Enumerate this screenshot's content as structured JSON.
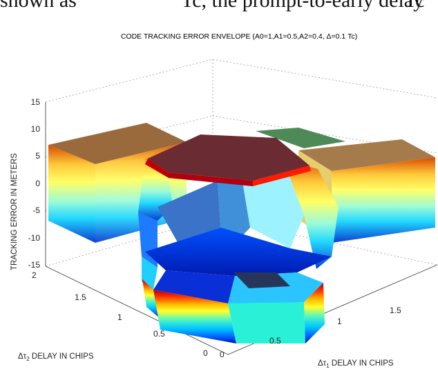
{
  "header_text": {
    "left": "shown as ",
    "right": "Tc",
    "middle": "Tc, the prompt-to-early delay"
  },
  "chart_data": {
    "type": "surface",
    "title": "CODE TRACKING ERROR ENVELOPE (A0=1,A1=0.5,A2=0.4, Δ=0.1 Tc)",
    "zlabel": "TRACKING ERROR IN METERS",
    "xlabel": "Δτ1 DELAY IN CHIPS",
    "ylabel": "Δτ2 DELAY IN CHIPS",
    "xlabel_main": "Δτ",
    "xlabel_sub": "1",
    "xlabel_rest": " DELAY IN CHIPS",
    "ylabel_main": "Δτ",
    "ylabel_sub": "2",
    "ylabel_rest": " DELAY IN CHIPS",
    "z_ticks": [
      "15",
      "10",
      "5",
      "0",
      "-5",
      "-10",
      "-15"
    ],
    "x_ticks": [
      "0",
      "0.5",
      "1",
      "1.5"
    ],
    "y_ticks": [
      "0",
      "0.5",
      "1",
      "1.5",
      "2"
    ],
    "xlim": [
      0,
      2
    ],
    "ylim": [
      0,
      2
    ],
    "zlim": [
      -15,
      15
    ],
    "colormap": "jet",
    "envelope": {
      "upper_max_m": 9,
      "lower_min_m": -12,
      "center_upper_m": 14,
      "center_lower_m": -13
    }
  }
}
